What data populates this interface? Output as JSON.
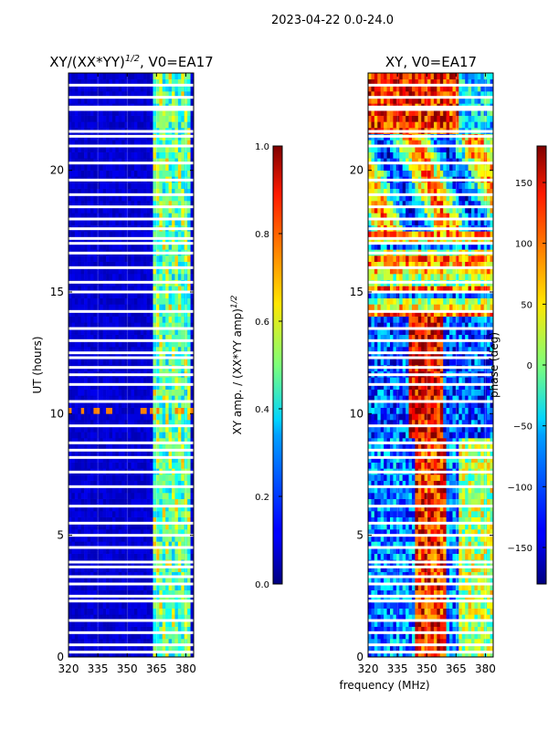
{
  "figure_title": "2023-04-22 0.0-24.0",
  "chart_data": [
    {
      "type": "heatmap",
      "title": "XY/(XX*YY)^1/2, V0=EA17",
      "title_main": "XY/(XX*YY)",
      "title_sup": "1/2",
      "title_tail": ", V0=EA17",
      "xlabel": "",
      "ylabel": "UT (hours)",
      "xlim": [
        320,
        384
      ],
      "ylim": [
        0,
        24
      ],
      "xticks": [
        320,
        335,
        350,
        365,
        380
      ],
      "yticks": [
        0,
        5,
        10,
        15,
        20
      ],
      "grid": true,
      "colorbar": {
        "label": "XY amp. / (XX*YY amp)^1/2",
        "label_main": "XY amp. / (XX*YY amp)",
        "label_sup": "1/2",
        "range": [
          0.0,
          1.0
        ],
        "ticks": [
          0.0,
          0.2,
          0.4,
          0.6,
          0.8,
          1.0
        ],
        "tick_labels": [
          "0.0",
          "0.2",
          "0.4",
          "0.6",
          "0.8",
          "1.0"
        ]
      },
      "description_values": {
        "background_level": 0.05,
        "active_band_mhz": [
          362,
          382
        ],
        "active_band_level": 0.4,
        "spike_level_near_10h": 0.75
      }
    },
    {
      "type": "heatmap",
      "title": "XY, V0=EA17",
      "xlabel": "frequency (MHz)",
      "ylabel": "",
      "xlim": [
        320,
        384
      ],
      "ylim": [
        0,
        24
      ],
      "xticks": [
        320,
        335,
        350,
        365,
        380
      ],
      "yticks": [
        0,
        5,
        10,
        15,
        20
      ],
      "grid": true,
      "colorbar": {
        "label": "phase (deg)",
        "range": [
          -180,
          180
        ],
        "ticks": [
          -150,
          -100,
          -50,
          0,
          50,
          100,
          150
        ],
        "tick_labels": [
          "−150",
          "−100",
          "−50",
          "0",
          "50",
          "100",
          "150"
        ]
      }
    }
  ],
  "flagged_hours": [
    0.2,
    0.5,
    1.0,
    1.5,
    2.3,
    2.5,
    3.0,
    3.3,
    3.7,
    3.9,
    4.5,
    5.0,
    5.5,
    6.2,
    7.0,
    7.6,
    8.2,
    8.5,
    8.8,
    9.5,
    10.5,
    11.2,
    11.6,
    11.9,
    12.3,
    12.5,
    13.0,
    13.5,
    14.2,
    15.0,
    15.4,
    16.0,
    16.6,
    17.0,
    17.2,
    17.6,
    18.0,
    18.5,
    19.0,
    19.6,
    20.3,
    21.0,
    21.4,
    21.6,
    22.5,
    22.6,
    23.0,
    23.5
  ]
}
